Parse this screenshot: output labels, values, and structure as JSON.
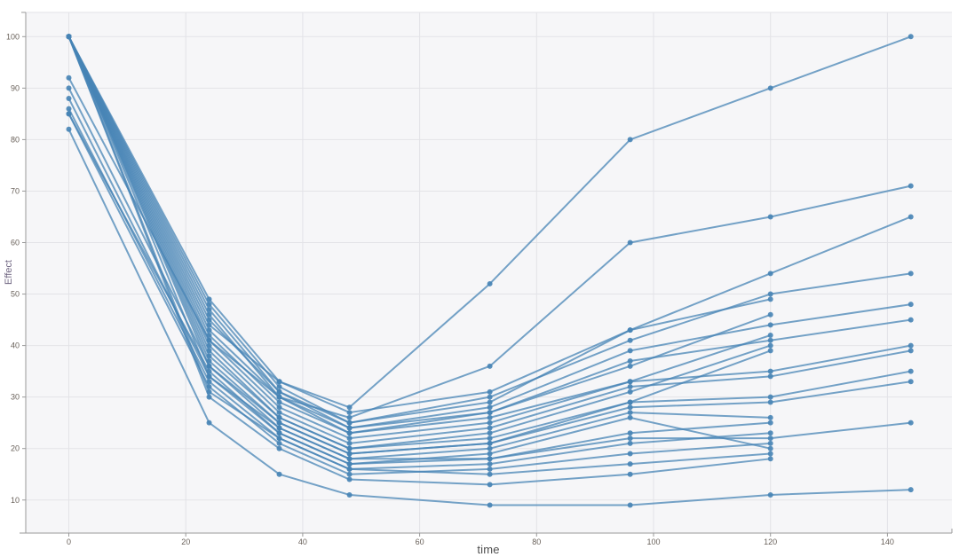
{
  "chart_data": {
    "type": "line",
    "title": "",
    "xlabel": "time",
    "ylabel": "Effect",
    "x_ticks": [
      0,
      20,
      40,
      60,
      80,
      100,
      120,
      140
    ],
    "y_ticks": [
      10,
      20,
      30,
      40,
      50,
      60,
      70,
      80,
      90,
      100
    ],
    "xlim": [
      -8,
      151
    ],
    "ylim": [
      3.5,
      104.5
    ],
    "grid": true,
    "legend": "none",
    "line_color": "#4784b5",
    "marker": "circle",
    "x": [
      0,
      24,
      36,
      48,
      72,
      96,
      120,
      144
    ],
    "series": [
      {
        "values": [
          100,
          44,
          33,
          28,
          52,
          80,
          90,
          100
        ]
      },
      {
        "values": [
          92,
          41,
          30,
          26,
          36,
          60,
          65,
          71
        ]
      },
      {
        "values": [
          100,
          49,
          33,
          27,
          31,
          43,
          54,
          65
        ]
      },
      {
        "values": [
          100,
          45,
          31,
          25,
          30,
          41,
          50,
          54
        ]
      },
      {
        "values": [
          100,
          43,
          30,
          24,
          28,
          39,
          44,
          48
        ]
      },
      {
        "values": [
          100,
          42,
          29,
          23,
          27,
          37,
          41,
          45
        ]
      },
      {
        "values": [
          100,
          41,
          28,
          22,
          25,
          33,
          35,
          40
        ]
      },
      {
        "values": [
          100,
          40,
          27,
          21,
          24,
          32,
          34,
          39
        ]
      },
      {
        "values": [
          100,
          39,
          26,
          20,
          22,
          29,
          30,
          35
        ]
      },
      {
        "values": [
          90,
          36,
          25,
          19,
          21,
          28,
          29,
          33
        ]
      },
      {
        "values": [
          88,
          34,
          24,
          18,
          18,
          22,
          22,
          25
        ]
      },
      {
        "values": [
          82,
          25,
          15,
          11,
          9,
          9,
          11,
          12
        ]
      },
      {
        "values": [
          100,
          48,
          32,
          25,
          29,
          43,
          49,
          null
        ]
      },
      {
        "values": [
          100,
          47,
          31,
          24,
          27,
          36,
          46,
          null
        ]
      },
      {
        "values": [
          100,
          46,
          30,
          23,
          26,
          33,
          42,
          null
        ]
      },
      {
        "values": [
          100,
          38,
          26,
          20,
          23,
          31,
          40,
          null
        ]
      },
      {
        "values": [
          100,
          37,
          25,
          19,
          21,
          29,
          39,
          null
        ]
      },
      {
        "values": [
          100,
          36,
          24,
          18,
          20,
          27,
          26,
          null
        ]
      },
      {
        "values": [
          85,
          35,
          23,
          17,
          18,
          23,
          25,
          null
        ]
      },
      {
        "values": [
          86,
          33,
          22,
          16,
          17,
          21,
          23,
          null
        ]
      },
      {
        "values": [
          85,
          32,
          21,
          15,
          16,
          19,
          21,
          null
        ]
      },
      {
        "values": [
          100,
          34,
          23,
          17,
          19,
          26,
          20,
          null
        ]
      },
      {
        "values": [
          100,
          31,
          22,
          16,
          15,
          17,
          19,
          null
        ]
      },
      {
        "values": [
          100,
          30,
          20,
          14,
          13,
          15,
          18,
          null
        ]
      }
    ],
    "colors": {
      "panel_fill": "#f6f6f8",
      "gridline": "#e3e3e7",
      "axis": "#9a9a9a",
      "tick_label": "#69615a",
      "xlabel_color": "#4d4d4d",
      "ylabel_color": "#6e6480"
    }
  }
}
